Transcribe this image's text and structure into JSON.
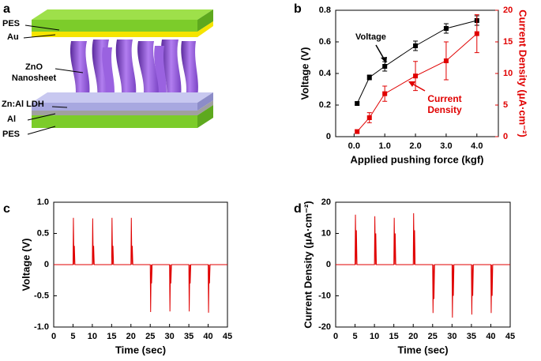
{
  "panel_labels": [
    "a",
    "b",
    "c",
    "d"
  ],
  "diagram": {
    "labels": [
      "PES",
      "Au",
      "ZnO Nanosheet",
      "Zn:Al LDH",
      "Al",
      "PES"
    ]
  },
  "chart_data": [
    {
      "type": "line",
      "xlabel": "Applied pushing force (kgf)",
      "ylabel": "Voltage (V)",
      "y2label": "Current Density (μA·cm⁻²)",
      "x": [
        0.1,
        0.5,
        1.0,
        2.0,
        3.0,
        4.0
      ],
      "xlim": [
        -0.6,
        4.7
      ],
      "xticks": [
        {
          "value": 0,
          "label": "0.0"
        },
        {
          "value": 1,
          "label": "1.0"
        },
        {
          "value": 2,
          "label": "2.0"
        },
        {
          "value": 3,
          "label": "3.0"
        },
        {
          "value": 4,
          "label": "4.0"
        }
      ],
      "ylim": [
        0,
        0.8
      ],
      "yticks": [
        0,
        0.2,
        0.4,
        0.6,
        0.8
      ],
      "y2lim": [
        0,
        20
      ],
      "y2ticks": [
        0,
        5,
        10,
        15,
        20
      ],
      "markers": true,
      "series": [
        {
          "name": "Voltage",
          "color": "#000000",
          "values": [
            0.21,
            0.375,
            0.445,
            0.575,
            0.685,
            0.735
          ],
          "errors": [
            0.01,
            0.015,
            0.03,
            0.03,
            0.03,
            0.03
          ]
        },
        {
          "name": "Current Density",
          "color": "#e00000",
          "axis": "y2",
          "values": [
            0.8,
            3,
            6.8,
            9.6,
            12,
            16.3
          ],
          "errors": [
            0.3,
            0.8,
            1.2,
            2.3,
            3,
            3
          ]
        }
      ]
    },
    {
      "type": "line",
      "xlabel": "Time (sec)",
      "ylabel": "Voltage (V)",
      "x": [
        0,
        5,
        5.1,
        5.25,
        5.35,
        5.5,
        10,
        10.1,
        10.25,
        10.35,
        10.5,
        15,
        15.1,
        15.25,
        15.35,
        15.5,
        20,
        20.1,
        20.25,
        20.35,
        20.5,
        25,
        25.1,
        25.25,
        25.35,
        25.5,
        30,
        30.1,
        30.25,
        30.35,
        30.5,
        35,
        35.1,
        35.25,
        35.35,
        35.5,
        40,
        40.1,
        40.25,
        40.35,
        40.5,
        45
      ],
      "xlim": [
        0,
        45
      ],
      "xticks": [
        0,
        5,
        10,
        15,
        20,
        25,
        30,
        35,
        40,
        45
      ],
      "ylim": [
        -1,
        1
      ],
      "yticks": [
        {
          "value": -1,
          "label": "-1.0"
        },
        {
          "value": -0.5,
          "label": "-0.5"
        },
        0,
        {
          "value": 0.5,
          "label": "0.5"
        },
        {
          "value": 1,
          "label": "1.0"
        }
      ],
      "series": [
        {
          "color": "#e00000",
          "values": [
            0,
            0,
            0.75,
            0,
            0.3,
            0,
            0,
            0.74,
            0,
            0.3,
            0,
            0,
            0.75,
            0,
            0.3,
            0,
            0,
            0.75,
            0,
            0.3,
            0,
            0,
            -0.76,
            0,
            -0.3,
            0,
            0,
            -0.75,
            0,
            -0.3,
            0,
            0,
            -0.75,
            0,
            -0.3,
            0,
            0,
            -0.77,
            0,
            -0.3,
            0,
            0
          ]
        }
      ]
    },
    {
      "type": "line",
      "xlabel": "Time (sec)",
      "ylabel": "Current Density (μA·cm⁻²)",
      "x": [
        0,
        5,
        5.1,
        5.25,
        5.35,
        5.5,
        10,
        10.1,
        10.25,
        10.35,
        10.5,
        15,
        15.1,
        15.25,
        15.35,
        15.5,
        20,
        20.1,
        20.25,
        20.35,
        20.5,
        25,
        25.1,
        25.25,
        25.35,
        25.5,
        30,
        30.1,
        30.25,
        30.35,
        30.5,
        35,
        35.1,
        35.25,
        35.35,
        35.5,
        40,
        40.1,
        40.25,
        40.35,
        40.5,
        45
      ],
      "xlim": [
        0,
        45
      ],
      "xticks": [
        0,
        5,
        10,
        15,
        20,
        25,
        30,
        35,
        40,
        45
      ],
      "ylim": [
        -20,
        20
      ],
      "yticks": [
        -20,
        -10,
        0,
        10,
        20
      ],
      "series": [
        {
          "color": "#e00000",
          "values": [
            0,
            0,
            16,
            0,
            11,
            0,
            0,
            15.5,
            0,
            10,
            0,
            0,
            15,
            0,
            10,
            0,
            0,
            16.5,
            0,
            11,
            0,
            0,
            -15.5,
            0,
            -11,
            0,
            0,
            -17,
            0,
            -10,
            0,
            0,
            -16,
            0,
            -10,
            0,
            0,
            -15.5,
            0,
            -10,
            0,
            0
          ]
        }
      ]
    }
  ]
}
